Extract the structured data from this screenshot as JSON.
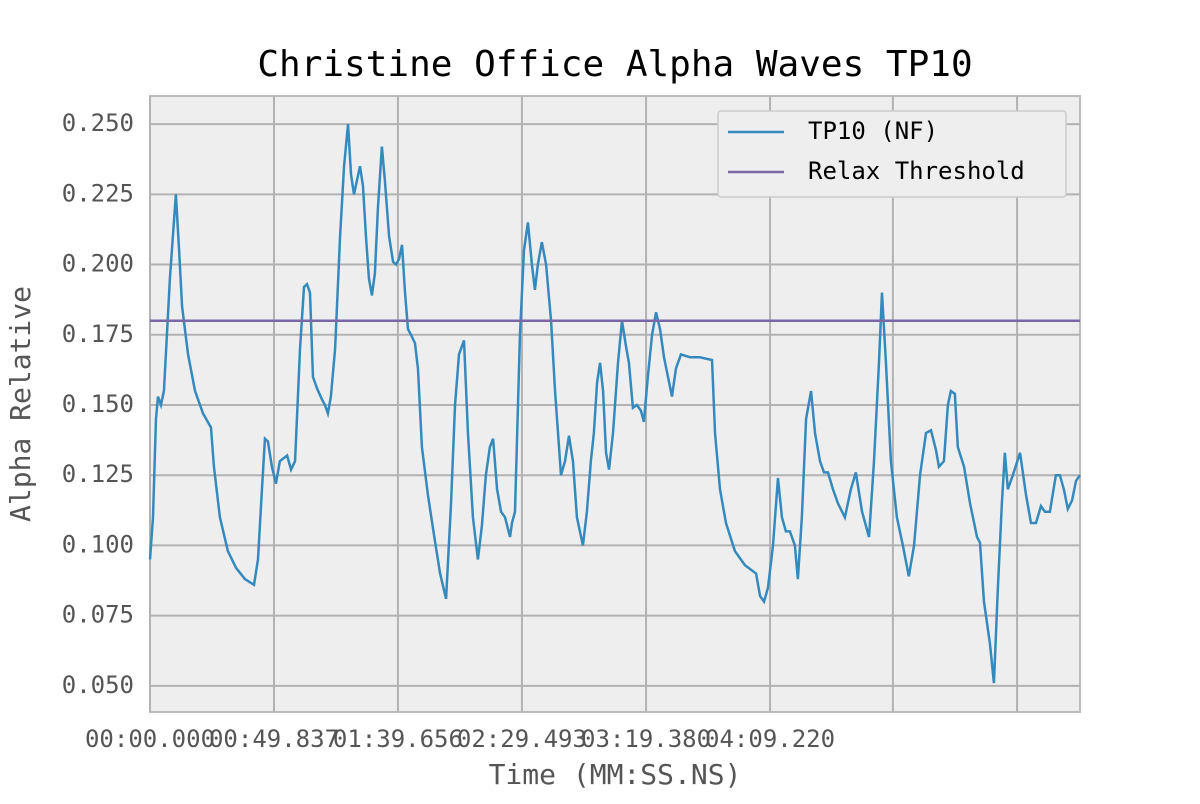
{
  "chart_data": {
    "type": "line",
    "title": "Christine Office Alpha Waves TP10",
    "xlabel": "Time (MM:SS.NS)",
    "ylabel": "Alpha Relative",
    "xlim": [
      0,
      373.8
    ],
    "ylim": [
      0.0407,
      0.26
    ],
    "xticks": [
      {
        "value": 0,
        "label": "00:00.000"
      },
      {
        "value": 49.837,
        "label": "00:49.837"
      },
      {
        "value": 99.656,
        "label": "01:39.656"
      },
      {
        "value": 149.493,
        "label": "02:29.493"
      },
      {
        "value": 199.38,
        "label": "03:19.380"
      },
      {
        "value": 249.22,
        "label": "04:09.220"
      },
      {
        "value": 298.6,
        "label": null
      },
      {
        "value": 348.5,
        "label": null
      }
    ],
    "yticks": [
      {
        "value": 0.05,
        "label": "0.050"
      },
      {
        "value": 0.075,
        "label": "0.075"
      },
      {
        "value": 0.1,
        "label": "0.100"
      },
      {
        "value": 0.125,
        "label": "0.125"
      },
      {
        "value": 0.15,
        "label": "0.150"
      },
      {
        "value": 0.175,
        "label": "0.175"
      },
      {
        "value": 0.2,
        "label": "0.200"
      },
      {
        "value": 0.225,
        "label": "0.225"
      },
      {
        "value": 0.25,
        "label": "0.250"
      }
    ],
    "grid": true,
    "legend": "upper right",
    "series": [
      {
        "name": "TP10 (NF)",
        "color": "#348abd",
        "x": [
          0,
          1.2,
          2.4,
          3.2,
          4.4,
          5.6,
          6.8,
          8.0,
          10.4,
          11.7,
          12.9,
          15.3,
          18.1,
          21.3,
          24.5,
          25.7,
          28.1,
          31.3,
          34.6,
          38.2,
          41.8,
          43.4,
          45.0,
          46.2,
          47.4,
          49.0,
          50.6,
          52.2,
          55.1,
          56.7,
          58.3,
          60.3,
          61.9,
          63.1,
          64.3,
          65.5,
          67.1,
          69.1,
          70.3,
          71.5,
          72.7,
          74.4,
          76.4,
          78.0,
          79.6,
          80.8,
          82.0,
          83.2,
          84.4,
          85.6,
          86.8,
          88.0,
          89.2,
          90.4,
          91.6,
          93.2,
          94.4,
          96.1,
          97.7,
          98.9,
          100.1,
          101.3,
          102.5,
          103.7,
          104.9,
          106.5,
          107.7,
          109.3,
          111.7,
          114.1,
          116.6,
          119.0,
          121.0,
          122.6,
          124.2,
          126.2,
          127.8,
          129.8,
          131.8,
          133.4,
          135.0,
          136.6,
          137.9,
          139.5,
          141.1,
          142.7,
          144.7,
          145.5,
          146.7,
          148.7,
          150.3,
          151.9,
          153.5,
          154.7,
          155.9,
          157.5,
          159.2,
          161.2,
          162.8,
          165.2,
          166.8,
          168.4,
          170.0,
          171.6,
          174.0,
          175.6,
          177.2,
          178.4,
          179.7,
          180.9,
          182.1,
          183.3,
          184.5,
          186.1,
          188.1,
          189.7,
          191.3,
          192.5,
          194.1,
          195.7,
          197.3,
          198.5,
          200.1,
          201.8,
          203.4,
          205.0,
          206.6,
          208.2,
          209.8,
          211.4,
          213.4,
          217.0,
          221.0,
          225.9,
          227.1,
          229.1,
          231.5,
          235.1,
          239.1,
          243.6,
          245.2,
          246.8,
          248.4,
          250.4,
          252.4,
          254.0,
          255.6,
          257.2,
          259.2,
          260.4,
          262.0,
          263.7,
          265.7,
          267.3,
          269.3,
          270.9,
          272.5,
          274.5,
          276.5,
          279.3,
          281.7,
          283.7,
          286.2,
          289.0,
          291.0,
          293.0,
          294.2,
          295.8,
          297.8,
          300.2,
          302.6,
          305.0,
          307.1,
          309.5,
          311.9,
          313.9,
          315.9,
          317.1,
          319.1,
          320.7,
          321.9,
          323.5,
          324.7,
          327.2,
          329.6,
          332.4,
          333.6,
          335.2,
          337.6,
          339.2,
          340.8,
          342.4,
          343.6,
          344.8,
          346.8,
          349.7,
          352.1,
          354.1,
          356.1,
          358.1,
          359.7,
          361.7,
          364.1,
          365.7,
          367.3,
          368.9,
          370.6,
          372.2,
          373.8
        ],
        "values": [
          0.095,
          0.11,
          0.145,
          0.153,
          0.15,
          0.155,
          0.175,
          0.195,
          0.225,
          0.205,
          0.185,
          0.168,
          0.155,
          0.147,
          0.142,
          0.128,
          0.11,
          0.098,
          0.092,
          0.088,
          0.086,
          0.095,
          0.12,
          0.138,
          0.137,
          0.128,
          0.122,
          0.13,
          0.132,
          0.127,
          0.13,
          0.17,
          0.192,
          0.193,
          0.19,
          0.16,
          0.156,
          0.152,
          0.15,
          0.147,
          0.153,
          0.17,
          0.21,
          0.235,
          0.25,
          0.232,
          0.225,
          0.23,
          0.235,
          0.228,
          0.21,
          0.195,
          0.189,
          0.197,
          0.22,
          0.242,
          0.23,
          0.21,
          0.201,
          0.2,
          0.202,
          0.207,
          0.19,
          0.177,
          0.175,
          0.172,
          0.163,
          0.135,
          0.118,
          0.104,
          0.09,
          0.081,
          0.115,
          0.15,
          0.168,
          0.173,
          0.14,
          0.11,
          0.095,
          0.107,
          0.125,
          0.135,
          0.138,
          0.12,
          0.112,
          0.11,
          0.103,
          0.108,
          0.112,
          0.175,
          0.205,
          0.215,
          0.2,
          0.191,
          0.2,
          0.208,
          0.2,
          0.18,
          0.155,
          0.125,
          0.13,
          0.139,
          0.13,
          0.11,
          0.1,
          0.112,
          0.13,
          0.14,
          0.158,
          0.165,
          0.155,
          0.133,
          0.127,
          0.14,
          0.165,
          0.18,
          0.171,
          0.165,
          0.149,
          0.15,
          0.148,
          0.144,
          0.16,
          0.175,
          0.183,
          0.177,
          0.167,
          0.16,
          0.153,
          0.163,
          0.168,
          0.167,
          0.167,
          0.166,
          0.14,
          0.12,
          0.108,
          0.098,
          0.093,
          0.09,
          0.082,
          0.08,
          0.085,
          0.1,
          0.124,
          0.11,
          0.105,
          0.105,
          0.1,
          0.088,
          0.11,
          0.145,
          0.155,
          0.14,
          0.13,
          0.126,
          0.126,
          0.12,
          0.115,
          0.11,
          0.12,
          0.126,
          0.112,
          0.103,
          0.13,
          0.165,
          0.19,
          0.165,
          0.13,
          0.11,
          0.1,
          0.089,
          0.1,
          0.125,
          0.14,
          0.141,
          0.134,
          0.128,
          0.13,
          0.15,
          0.155,
          0.154,
          0.135,
          0.128,
          0.115,
          0.103,
          0.101,
          0.08,
          0.065,
          0.051,
          0.085,
          0.115,
          0.133,
          0.12,
          0.125,
          0.133,
          0.118,
          0.108,
          0.108,
          0.114,
          0.112,
          0.112,
          0.125,
          0.125,
          0.12,
          0.113,
          0.116,
          0.123,
          0.125
        ]
      },
      {
        "name": "Relax Threshold",
        "color": "#7a68a6",
        "x": [
          0,
          373.8
        ],
        "values": [
          0.18,
          0.18
        ]
      }
    ]
  }
}
